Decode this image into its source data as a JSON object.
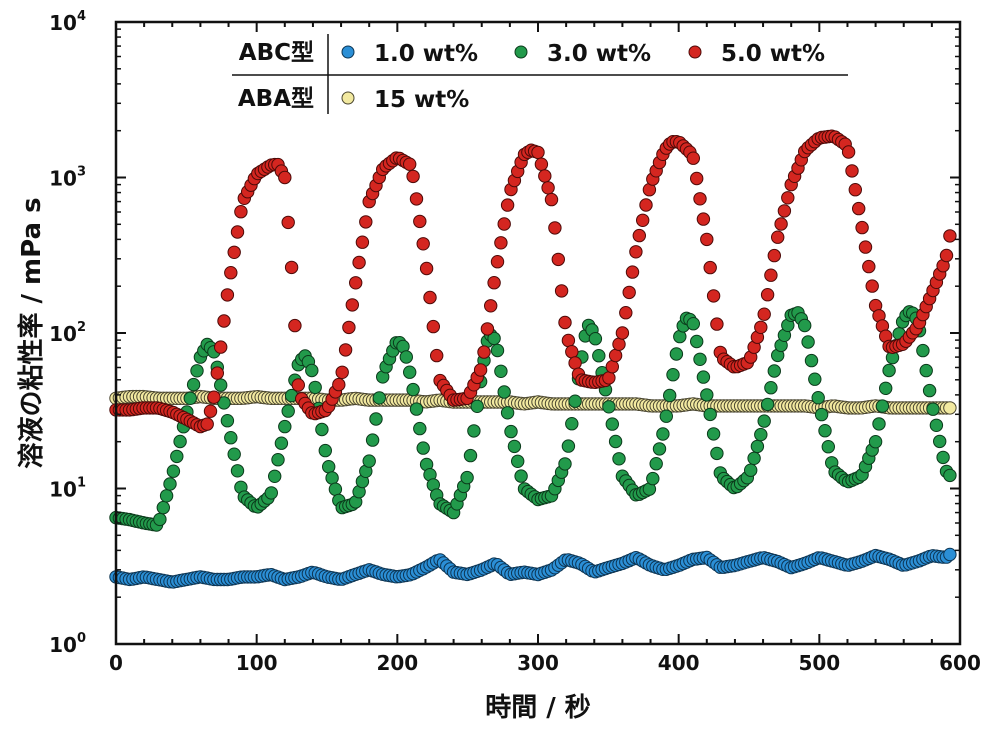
{
  "chart_data": {
    "type": "scatter",
    "title": "",
    "xlabel": "時間 / 秒",
    "ylabel": "溶液の粘性率 / mPa s",
    "xlim": [
      0,
      600
    ],
    "ylim": [
      1,
      10000
    ],
    "yscale": "log",
    "grid": false,
    "legend_position": "top",
    "x_ticks": [
      "0",
      "100",
      "200",
      "300",
      "400",
      "500",
      "600"
    ],
    "y_ticks": [
      {
        "base": "10",
        "exp": "0"
      },
      {
        "base": "10",
        "exp": "1"
      },
      {
        "base": "10",
        "exp": "2"
      },
      {
        "base": "10",
        "exp": "3"
      },
      {
        "base": "10",
        "exp": "4"
      }
    ],
    "legend": {
      "groups": [
        {
          "label": "ABC型",
          "entries": [
            "1.0 wt%",
            "3.0 wt%",
            "5.0 wt%"
          ]
        },
        {
          "label": "ABA型",
          "entries": [
            "15 wt%"
          ]
        }
      ]
    },
    "series": [
      {
        "name": "1.0 wt%",
        "group": "ABC型",
        "color": "#2b8fd6",
        "edge": "#0d3553",
        "x": [
          0,
          10,
          20,
          30,
          40,
          50,
          60,
          70,
          80,
          90,
          100,
          110,
          120,
          130,
          140,
          150,
          160,
          170,
          180,
          190,
          200,
          210,
          220,
          230,
          240,
          250,
          260,
          270,
          280,
          290,
          300,
          310,
          320,
          330,
          340,
          350,
          360,
          370,
          380,
          390,
          400,
          410,
          420,
          430,
          440,
          450,
          460,
          470,
          480,
          490,
          500,
          510,
          520,
          530,
          540,
          550,
          560,
          570,
          580,
          590,
          595
        ],
        "y": [
          2.7,
          2.6,
          2.7,
          2.6,
          2.5,
          2.6,
          2.7,
          2.6,
          2.6,
          2.7,
          2.7,
          2.8,
          2.6,
          2.7,
          2.9,
          2.7,
          2.6,
          2.8,
          3.0,
          2.8,
          2.7,
          2.8,
          3.1,
          3.5,
          2.9,
          2.8,
          3.0,
          3.3,
          2.8,
          2.9,
          2.8,
          3.0,
          3.5,
          3.3,
          2.9,
          3.1,
          3.3,
          3.6,
          3.2,
          3.0,
          3.2,
          3.5,
          3.6,
          3.1,
          3.2,
          3.4,
          3.6,
          3.4,
          3.1,
          3.3,
          3.6,
          3.4,
          3.2,
          3.4,
          3.7,
          3.5,
          3.2,
          3.4,
          3.7,
          3.6,
          3.9
        ]
      },
      {
        "name": "3.0 wt%",
        "group": "ABC型",
        "color": "#229a4b",
        "edge": "#0b3a1b",
        "x": [
          0,
          10,
          20,
          30,
          40,
          50,
          60,
          65,
          70,
          80,
          90,
          100,
          110,
          120,
          130,
          135,
          140,
          150,
          160,
          170,
          180,
          190,
          200,
          205,
          210,
          220,
          230,
          240,
          250,
          260,
          265,
          270,
          280,
          290,
          300,
          310,
          320,
          330,
          335,
          340,
          350,
          360,
          370,
          380,
          390,
          400,
          405,
          410,
          420,
          430,
          440,
          450,
          460,
          470,
          480,
          485,
          490,
          500,
          510,
          520,
          530,
          540,
          550,
          560,
          565,
          570,
          580,
          590,
          595
        ],
        "y": [
          6.5,
          6.3,
          6.0,
          5.8,
          12,
          30,
          70,
          85,
          75,
          25,
          9,
          7.5,
          9,
          25,
          65,
          72,
          55,
          15,
          7.5,
          8,
          15,
          55,
          90,
          80,
          50,
          15,
          8,
          7,
          12,
          55,
          100,
          90,
          25,
          10,
          8.5,
          9,
          15,
          60,
          115,
          100,
          35,
          12,
          9,
          10,
          25,
          90,
          125,
          120,
          40,
          12,
          10,
          12,
          25,
          70,
          130,
          135,
          110,
          35,
          13,
          11,
          12,
          20,
          60,
          125,
          140,
          120,
          35,
          13,
          11.5
        ]
      },
      {
        "name": "5.0 wt%",
        "group": "ABC型",
        "color": "#d42620",
        "edge": "#4d0a08",
        "x": [
          0,
          10,
          20,
          30,
          40,
          50,
          60,
          65,
          70,
          80,
          90,
          100,
          110,
          115,
          120,
          125,
          130,
          140,
          150,
          160,
          170,
          180,
          190,
          200,
          210,
          220,
          230,
          240,
          250,
          260,
          270,
          280,
          290,
          295,
          300,
          310,
          320,
          330,
          340,
          350,
          360,
          370,
          380,
          390,
          395,
          400,
          410,
          420,
          430,
          440,
          450,
          460,
          470,
          480,
          490,
          500,
          510,
          520,
          530,
          540,
          550,
          560,
          570,
          580,
          590,
          595
        ],
        "y": [
          32,
          32,
          33,
          33,
          31,
          28,
          25,
          26,
          40,
          200,
          700,
          1050,
          1200,
          1220,
          1000,
          250,
          40,
          30,
          32,
          50,
          200,
          700,
          1150,
          1350,
          1200,
          300,
          50,
          37,
          38,
          60,
          250,
          800,
          1400,
          1500,
          1450,
          700,
          100,
          50,
          48,
          50,
          100,
          350,
          900,
          1500,
          1700,
          1700,
          1400,
          400,
          70,
          60,
          65,
          120,
          400,
          900,
          1500,
          1800,
          1850,
          1600,
          500,
          150,
          80,
          85,
          110,
          180,
          300,
          550
        ]
      },
      {
        "name": "15 wt%",
        "group": "ABA型",
        "color": "#f2e9a0",
        "edge": "#4a4630",
        "x": [
          0,
          10,
          20,
          30,
          40,
          50,
          60,
          70,
          80,
          90,
          100,
          110,
          120,
          130,
          140,
          150,
          160,
          170,
          180,
          190,
          200,
          210,
          220,
          230,
          240,
          250,
          260,
          270,
          280,
          290,
          300,
          310,
          320,
          330,
          340,
          350,
          360,
          370,
          380,
          390,
          400,
          410,
          420,
          430,
          440,
          450,
          460,
          470,
          480,
          490,
          500,
          510,
          520,
          530,
          540,
          550,
          560,
          570,
          580,
          590,
          595
        ],
        "y": [
          38,
          39,
          39,
          38,
          38,
          38,
          39,
          38,
          38,
          38,
          39,
          38,
          38,
          38,
          38,
          37,
          37,
          38,
          37,
          37,
          37,
          37,
          36,
          37,
          36,
          36,
          36,
          36,
          36,
          35,
          36,
          35,
          35,
          35,
          35,
          35,
          35,
          35,
          34,
          34,
          34,
          35,
          34,
          34,
          34,
          34,
          34,
          34,
          34,
          34,
          33,
          34,
          33,
          33,
          34,
          33,
          33,
          33,
          33,
          33,
          33
        ]
      }
    ]
  }
}
